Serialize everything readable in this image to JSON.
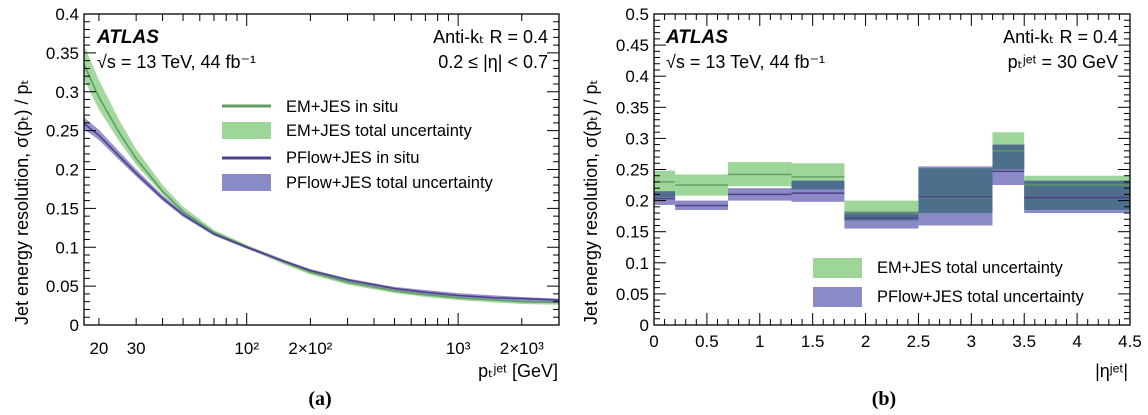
{
  "panels": [
    {
      "caption": "(a)",
      "atlas": "ATLAS",
      "energy_lumi": "√s = 13 TeV, 44 fb⁻¹",
      "algo": "Anti-kₜ R = 0.4",
      "selection": "0.2 ≤ |η| < 0.7",
      "ylabel": "Jet energy resolution,  σ(pₜ) / pₜ",
      "xlabel": "pₜʲᵉᵗ [GeV]",
      "legend": {
        "em_line": "EM+JES in situ",
        "em_band": "EM+JES total uncertainty",
        "pf_line": "PFlow+JES in situ",
        "pf_band": "PFlow+JES total uncertainty"
      }
    },
    {
      "caption": "(b)",
      "atlas": "ATLAS",
      "energy_lumi": "√s = 13 TeV, 44 fb⁻¹",
      "algo": "Anti-kₜ R = 0.4",
      "selection": "pₜʲᵉᵗ = 30 GeV",
      "ylabel": "Jet energy resolution,  σ(pₜ) / pₜ",
      "xlabel": "|ηʲᵉᵗ|",
      "legend": {
        "em_band": "EM+JES total uncertainty",
        "pf_band": "PFlow+JES total uncertainty"
      }
    }
  ],
  "colors": {
    "em_band": "#9ed69a",
    "em_line": "#5f9e63",
    "pf_band": "#8a8ac6",
    "pf_line": "#4e3f8c",
    "overlap": "#4e6f8c"
  },
  "chart_data": [
    {
      "type": "line",
      "x_scale": "log",
      "xlim": [
        17,
        3000
      ],
      "ylim": [
        0,
        0.4
      ],
      "x_ticks": [
        "20",
        "30",
        "10²",
        "2×10²",
        "10³",
        "2×10³"
      ],
      "y_ticks": [
        "0",
        "0.05",
        "0.1",
        "0.15",
        "0.2",
        "0.25",
        "0.3",
        "0.35",
        "0.4"
      ],
      "legend_position": "right-middle",
      "series": [
        {
          "name": "EM+JES in situ",
          "x": [
            17,
            20,
            25,
            30,
            40,
            50,
            70,
            100,
            150,
            200,
            300,
            500,
            700,
            1000,
            1500,
            2000,
            3000
          ],
          "y": [
            0.335,
            0.293,
            0.247,
            0.214,
            0.172,
            0.146,
            0.119,
            0.101,
            0.081,
            0.068,
            0.055,
            0.044,
            0.039,
            0.035,
            0.032,
            0.03,
            0.029
          ],
          "err_low": [
            0.316,
            0.277,
            0.236,
            0.206,
            0.168,
            0.143,
            0.117,
            0.099,
            0.078,
            0.065,
            0.052,
            0.041,
            0.036,
            0.032,
            0.029,
            0.027,
            0.026
          ],
          "err_high": [
            0.36,
            0.315,
            0.263,
            0.226,
            0.18,
            0.152,
            0.122,
            0.103,
            0.084,
            0.071,
            0.058,
            0.047,
            0.042,
            0.038,
            0.035,
            0.033,
            0.032
          ]
        },
        {
          "name": "PFlow+JES in situ",
          "x": [
            17,
            20,
            25,
            30,
            40,
            50,
            70,
            100,
            150,
            200,
            300,
            500,
            700,
            1000,
            1500,
            2000,
            3000
          ],
          "y": [
            0.259,
            0.244,
            0.217,
            0.195,
            0.163,
            0.142,
            0.117,
            0.1,
            0.082,
            0.07,
            0.058,
            0.047,
            0.042,
            0.038,
            0.035,
            0.034,
            0.032
          ],
          "err_low": [
            0.252,
            0.238,
            0.212,
            0.191,
            0.16,
            0.139,
            0.115,
            0.098,
            0.08,
            0.068,
            0.056,
            0.045,
            0.04,
            0.036,
            0.033,
            0.031,
            0.029
          ],
          "err_high": [
            0.267,
            0.251,
            0.223,
            0.2,
            0.167,
            0.145,
            0.119,
            0.102,
            0.084,
            0.072,
            0.06,
            0.049,
            0.045,
            0.041,
            0.038,
            0.036,
            0.034
          ]
        }
      ]
    },
    {
      "type": "area",
      "xlim": [
        0,
        4.5
      ],
      "ylim": [
        0,
        0.5
      ],
      "x_ticks": [
        "0",
        "0.5",
        "1",
        "1.5",
        "2",
        "2.5",
        "3",
        "3.5",
        "4",
        "4.5"
      ],
      "y_ticks": [
        "0",
        "0.05",
        "0.1",
        "0.15",
        "0.2",
        "0.25",
        "0.3",
        "0.35",
        "0.4",
        "0.45",
        "0.5"
      ],
      "legend_position": "bottom-right",
      "bin_edges": [
        0,
        0.2,
        0.7,
        1.3,
        1.8,
        2.5,
        3.2,
        3.5,
        4.5
      ],
      "series": [
        {
          "name": "EM+JES total uncertainty",
          "central": [
            0.23,
            0.225,
            0.242,
            0.238,
            0.18,
            0.205,
            0.28,
            0.225
          ],
          "low": [
            0.205,
            0.208,
            0.223,
            0.218,
            0.168,
            0.18,
            0.25,
            0.185
          ],
          "high": [
            0.248,
            0.242,
            0.262,
            0.26,
            0.2,
            0.252,
            0.31,
            0.24
          ]
        },
        {
          "name": "PFlow+JES total uncertainty",
          "central": [
            0.203,
            0.192,
            0.21,
            0.212,
            0.172,
            0.206,
            0.247,
            0.205
          ],
          "low": [
            0.193,
            0.185,
            0.2,
            0.198,
            0.155,
            0.16,
            0.225,
            0.18
          ],
          "high": [
            0.215,
            0.2,
            0.22,
            0.232,
            0.182,
            0.255,
            0.29,
            0.232
          ]
        }
      ]
    }
  ]
}
